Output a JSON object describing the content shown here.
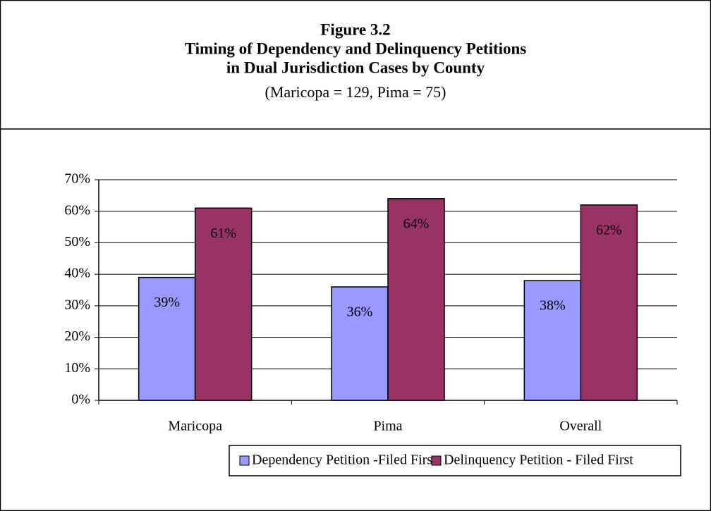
{
  "chart_data": {
    "type": "bar",
    "title": [
      "Figure 3.2",
      "Timing of Dependency and Delinquency Petitions",
      "in Dual Jurisdiction Cases by County"
    ],
    "subtitle": "(Maricopa = 129, Pima = 75)",
    "categories": [
      "Maricopa",
      "Pima",
      "Overall"
    ],
    "series": [
      {
        "name": "Dependency Petition -Filed First",
        "color": "#9999ff",
        "values": [
          39,
          36,
          38
        ],
        "value_labels": [
          "39%",
          "36%",
          "38%"
        ]
      },
      {
        "name": "Delinquency Petition - Filed First",
        "color": "#993366",
        "values": [
          61,
          64,
          62
        ],
        "value_labels": [
          "61%",
          "64%",
          "62%"
        ]
      }
    ],
    "ylim": [
      0,
      70
    ],
    "yticks": [
      {
        "value": 0,
        "label": "0%"
      },
      {
        "value": 10,
        "label": "10%"
      },
      {
        "value": 20,
        "label": "20%"
      },
      {
        "value": 30,
        "label": "30%"
      },
      {
        "value": 40,
        "label": "40%"
      },
      {
        "value": 50,
        "label": "50%"
      },
      {
        "value": 60,
        "label": "60%"
      },
      {
        "value": 70,
        "label": "70%"
      }
    ],
    "grid": true,
    "legend": "bottom"
  }
}
